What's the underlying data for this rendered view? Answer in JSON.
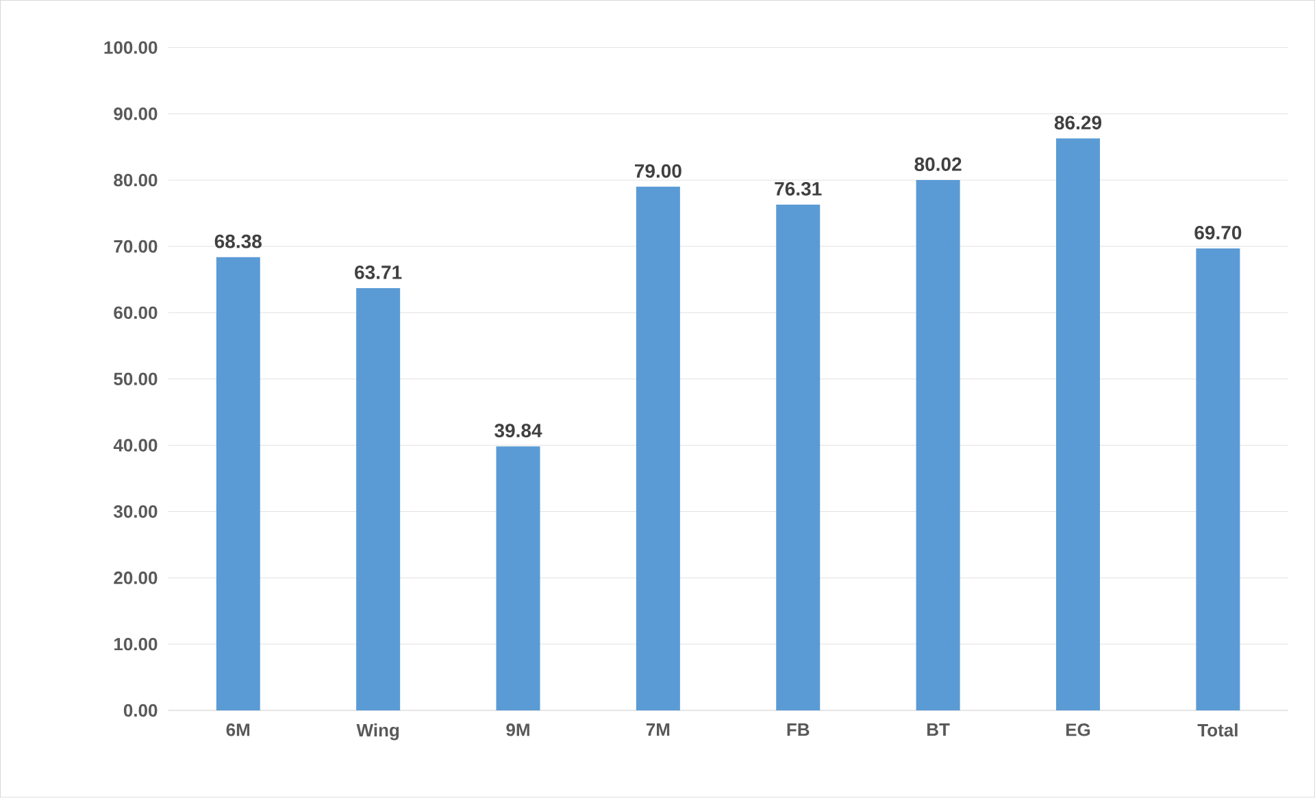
{
  "chart_data": {
    "type": "bar",
    "categories": [
      "6M",
      "Wing",
      "9M",
      "7M",
      "FB",
      "BT",
      "EG",
      "Total"
    ],
    "values": [
      68.38,
      63.71,
      39.84,
      79.0,
      76.31,
      80.02,
      86.29,
      69.7
    ],
    "value_labels": [
      "68.38",
      "63.71",
      "39.84",
      "79.00",
      "76.31",
      "80.02",
      "86.29",
      "69.70"
    ],
    "color": "#5b9bd5",
    "ylim": [
      0,
      100
    ],
    "yticks": [
      {
        "value": 0,
        "label": "0.00"
      },
      {
        "value": 10,
        "label": "10.00"
      },
      {
        "value": 20,
        "label": "20.00"
      },
      {
        "value": 30,
        "label": "30.00"
      },
      {
        "value": 40,
        "label": "40.00"
      },
      {
        "value": 50,
        "label": "50.00"
      },
      {
        "value": 60,
        "label": "60.00"
      },
      {
        "value": 70,
        "label": "70.00"
      },
      {
        "value": 80,
        "label": "80.00"
      },
      {
        "value": 90,
        "label": "90.00"
      },
      {
        "value": 100,
        "label": "100.00"
      }
    ],
    "grid": "y"
  }
}
